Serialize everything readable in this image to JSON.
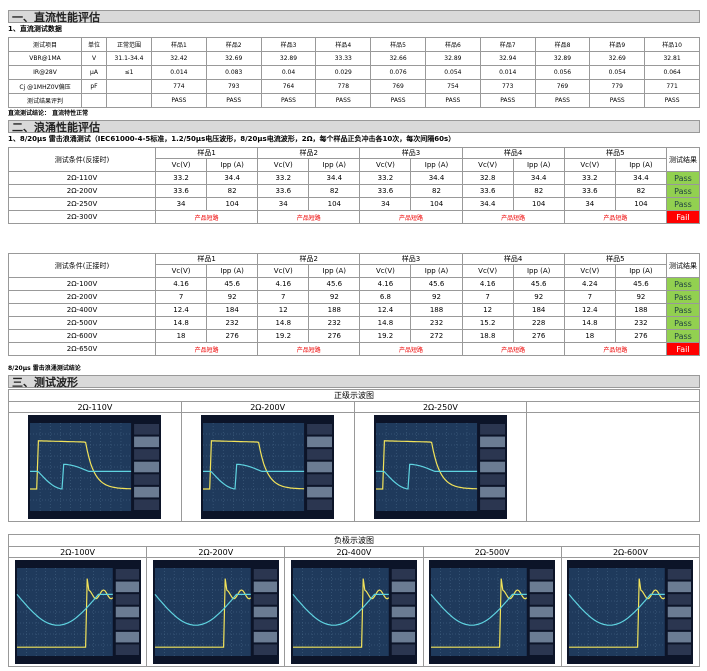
{
  "dc": {
    "title": "一、直流性能评估",
    "subtitle": "1、直流测试数据",
    "table": {
      "header": [
        "测试项目",
        "单位",
        "正常范围",
        "样品1",
        "样品2",
        "样品3",
        "样品4",
        "样品5",
        "样品6",
        "样品7",
        "样品8",
        "样品9",
        "样品10"
      ],
      "rows": [
        {
          "item": "VBR@1MA",
          "unit": "V",
          "range": "31.1-34.4",
          "values": [
            32.42,
            32.69,
            32.89,
            33.33,
            32.66,
            32.89,
            32.94,
            32.89,
            32.69,
            32.81
          ]
        },
        {
          "item": "IR@28V",
          "unit": "μA",
          "range": "≤1",
          "values": [
            0.014,
            0.083,
            0.04,
            0.029,
            0.076,
            0.054,
            0.014,
            0.056,
            0.054,
            0.064
          ]
        },
        {
          "item": "Cj @1MHZ0V偏压",
          "unit": "pF",
          "values": [
            774,
            793,
            764,
            778,
            769,
            754,
            773,
            769,
            779,
            771
          ]
        },
        {
          "item": "测试结果评判",
          "values": [
            "PASS",
            "PASS",
            "PASS",
            "PASS",
            "PASS",
            "PASS",
            "PASS",
            "PASS",
            "PASS",
            "PASS"
          ]
        }
      ]
    },
    "conclusion": "直流测试结论：  直流特性正常"
  },
  "surge": {
    "title": "二、浪涌性能评估",
    "subtitle": "1、8/20μs 雷击浪涌测试（IEC61000-4-5标准，1.2/50μs电压波形，8/20μs电流波形，2Ω，每个样品正负冲击各10次，每次间隔60s）",
    "reverse": {
      "condition": "测试条件(反接时)",
      "samples": [
        "样品1",
        "样品2",
        "样品3",
        "样品4",
        "样品5"
      ],
      "sub_headers": [
        "Vc(V)",
        "Ipp (A)"
      ],
      "result": "测试结果",
      "rows": [
        {
          "condition": "2Ω-110V",
          "cells": [
            33.2,
            34.4,
            33.2,
            34.4,
            33.2,
            34.4,
            32.8,
            34.4,
            33.2,
            34.4
          ],
          "result": "Pass"
        },
        {
          "condition": "2Ω-200V",
          "cells": [
            33.6,
            82,
            33.6,
            82,
            33.6,
            82,
            33.6,
            82,
            33.6,
            82
          ],
          "result": "Pass"
        },
        {
          "condition": "2Ω-250V",
          "cells": [
            34,
            104,
            34,
            104,
            34,
            104,
            34.4,
            104,
            34,
            104
          ],
          "result": "Pass"
        },
        {
          "condition": "2Ω-300V",
          "cells": [
            "产品短路",
            "产品短路",
            "产品短路",
            "产品短路",
            "产品短路"
          ],
          "result": "Fail"
        }
      ]
    },
    "forward": {
      "condition": "测试条件(正接时)",
      "samples": [
        "样品1",
        "样品2",
        "样品3",
        "样品4",
        "样品5"
      ],
      "sub_headers": [
        "Vc(V)",
        "Ipp (A)"
      ],
      "result": "测试结果",
      "rows": [
        {
          "condition": "2Ω-100V",
          "cells": [
            4.16,
            45.6,
            4.16,
            45.6,
            4.16,
            45.6,
            4.16,
            45.6,
            4.24,
            45.6
          ],
          "result": "Pass"
        },
        {
          "condition": "2Ω-200V",
          "cells": [
            7,
            92,
            7,
            92,
            6.8,
            92,
            7,
            92,
            7,
            92
          ],
          "result": "Pass"
        },
        {
          "condition": "2Ω-400V",
          "cells": [
            12.4,
            184,
            12,
            188,
            12.4,
            188,
            12,
            184,
            12.4,
            188
          ],
          "result": "Pass"
        },
        {
          "condition": "2Ω-500V",
          "cells": [
            14.8,
            232,
            14.8,
            232,
            14.8,
            232,
            15.2,
            228,
            14.8,
            232
          ],
          "result": "Pass"
        },
        {
          "condition": "2Ω-600V",
          "cells": [
            18,
            276,
            19.2,
            276,
            19.2,
            272,
            18.8,
            276,
            18,
            276
          ],
          "result": "Pass"
        },
        {
          "condition": "2Ω-650V",
          "cells": [
            "产品短路",
            "产品短路",
            "产品短路",
            "产品短路",
            "产品短路"
          ],
          "result": "Fail"
        }
      ]
    },
    "conclusion": "8/20μs 雷击浪涌测试结论"
  },
  "waveforms": {
    "title": "三、测试波形",
    "positive": {
      "title": "正级示波图",
      "labels": [
        "2Ω-110V",
        "2Ω-200V",
        "2Ω-250V"
      ]
    },
    "negative": {
      "title": "负极示波图",
      "labels": [
        "2Ω-100V",
        "2Ω-200V",
        "2Ω-400V",
        "2Ω-500V",
        "2Ω-600V"
      ]
    }
  }
}
